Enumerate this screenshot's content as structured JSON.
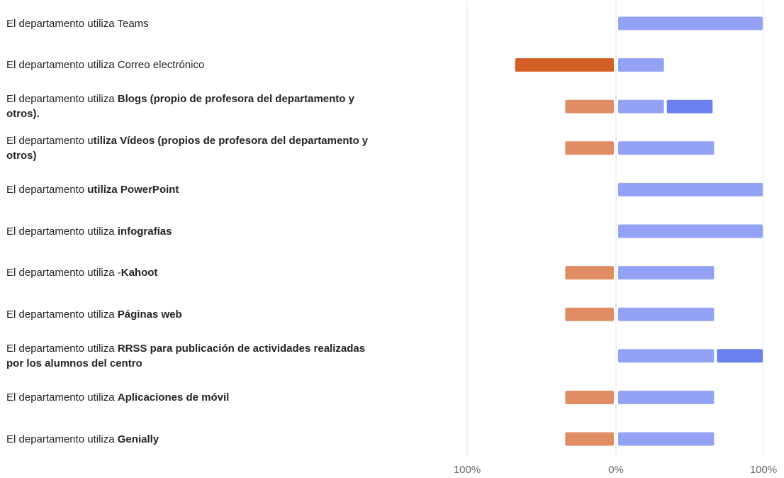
{
  "chart_data": {
    "type": "bar",
    "orientation": "horizontal-diverging",
    "x_ticks": [
      "100%",
      "0%",
      "100%"
    ],
    "xlim": [
      -100,
      100
    ],
    "grid": true,
    "colors": {
      "negative_strong": "#D35F27",
      "negative_light": "#E08C64",
      "positive_light": "#93A2F5",
      "positive_strong": "#6B80EF",
      "gridline": "#E6E6E6",
      "tick_label": "#666666"
    },
    "rows": [
      {
        "label_prefix": "El departamento utiliza Teams",
        "label_bold": "",
        "negative": [],
        "positive": [
          {
            "value": 100,
            "shade": "light"
          }
        ]
      },
      {
        "label_prefix": "El departamento utiliza Correo electrónico",
        "label_bold": "",
        "negative": [
          {
            "value": 67,
            "shade": "strong"
          }
        ],
        "positive": [
          {
            "value": 33,
            "shade": "light"
          }
        ]
      },
      {
        "label_prefix": "El departamento utiliza ",
        "label_bold": "Blogs (propio de profesora del departamento y otros).",
        "negative": [
          {
            "value": 33,
            "shade": "light"
          }
        ],
        "positive": [
          {
            "value": 33,
            "shade": "light"
          },
          {
            "value": 33,
            "shade": "strong"
          }
        ]
      },
      {
        "label_prefix": "El departamento u",
        "label_bold": "tiliza Vídeos (propios de profesora del departamento y otros)",
        "negative": [
          {
            "value": 33,
            "shade": "light"
          }
        ],
        "positive": [
          {
            "value": 67,
            "shade": "light"
          }
        ]
      },
      {
        "label_prefix": "El departamento ",
        "label_bold": "utiliza PowerPoint",
        "negative": [],
        "positive": [
          {
            "value": 100,
            "shade": "light"
          }
        ]
      },
      {
        "label_prefix": "El departamento utiliza ",
        "label_bold": "infografías",
        "negative": [],
        "positive": [
          {
            "value": 100,
            "shade": "light"
          }
        ]
      },
      {
        "label_prefix": "El departamento utiliza -",
        "label_bold": "Kahoot",
        "negative": [
          {
            "value": 33,
            "shade": "light"
          }
        ],
        "positive": [
          {
            "value": 67,
            "shade": "light"
          }
        ]
      },
      {
        "label_prefix": "El departamento utiliza ",
        "label_bold": "Páginas web",
        "negative": [
          {
            "value": 33,
            "shade": "light"
          }
        ],
        "positive": [
          {
            "value": 67,
            "shade": "light"
          }
        ]
      },
      {
        "label_prefix": "El departamento utiliza ",
        "label_bold": "RRSS para publicación de actividades realizadas por los alumnos del centro",
        "negative": [],
        "positive": [
          {
            "value": 67,
            "shade": "light"
          },
          {
            "value": 33,
            "shade": "strong"
          }
        ]
      },
      {
        "label_prefix": "El departamento utiliza ",
        "label_bold": "Aplicaciones de móvil",
        "negative": [
          {
            "value": 33,
            "shade": "light"
          }
        ],
        "positive": [
          {
            "value": 67,
            "shade": "light"
          }
        ]
      },
      {
        "label_prefix": "El departamento utiliza ",
        "label_bold": "Genially",
        "negative": [
          {
            "value": 33,
            "shade": "light"
          }
        ],
        "positive": [
          {
            "value": 67,
            "shade": "light"
          }
        ]
      }
    ]
  }
}
